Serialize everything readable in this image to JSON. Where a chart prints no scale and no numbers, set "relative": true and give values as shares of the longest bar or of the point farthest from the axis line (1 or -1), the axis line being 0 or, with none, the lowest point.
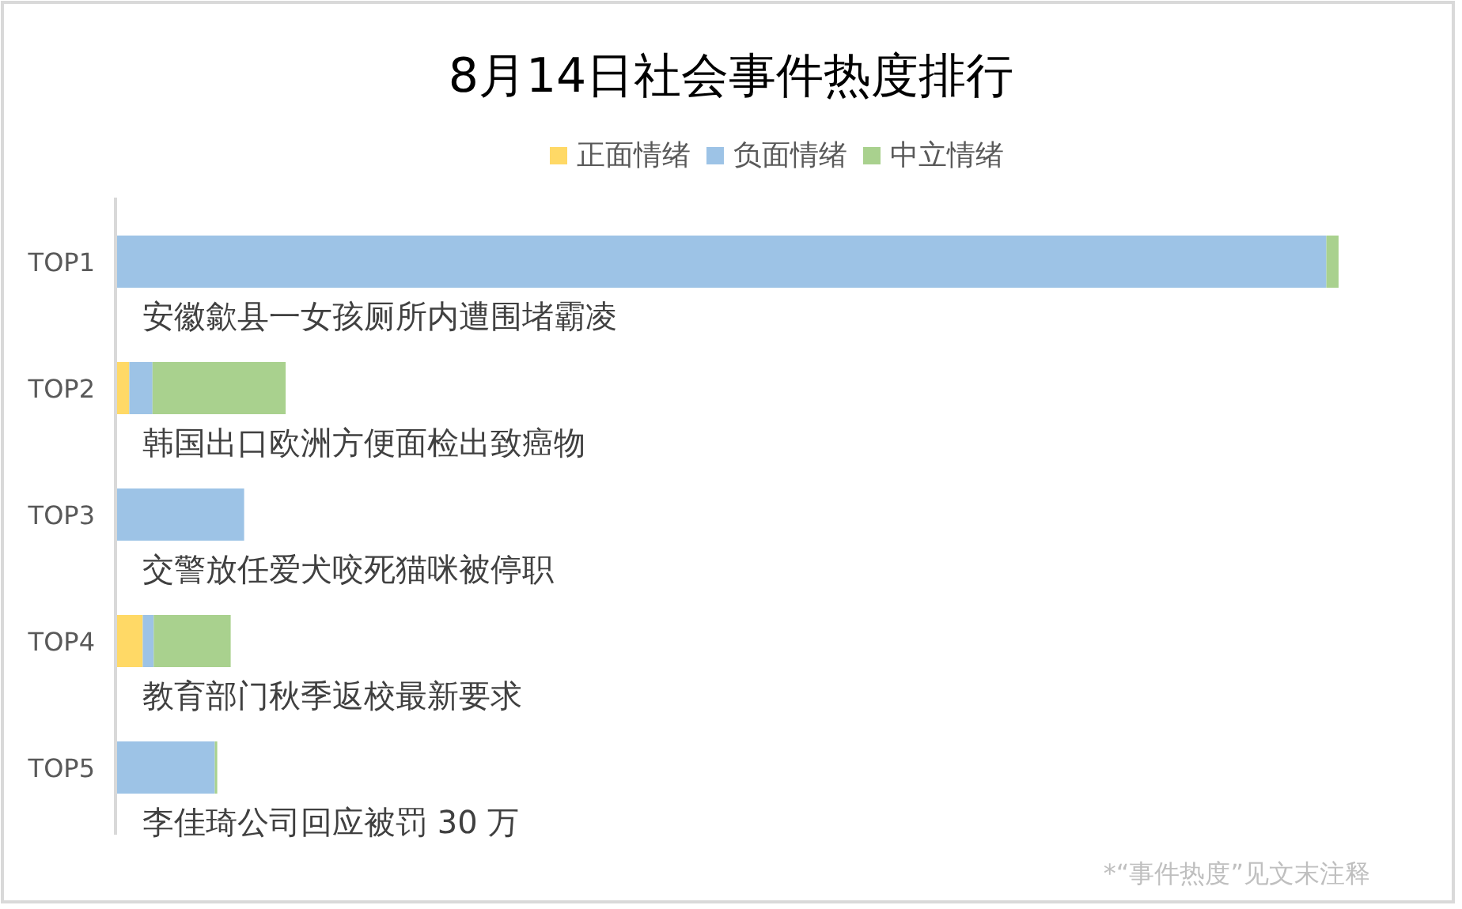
{
  "chart_data": {
    "type": "bar",
    "orientation": "horizontal",
    "stacked": true,
    "relative": true,
    "title": "8月14日社会事件热度排行",
    "legend": "top",
    "categories": [
      "TOP1",
      "TOP2",
      "TOP3",
      "TOP4",
      "TOP5"
    ],
    "series": [
      {
        "name": "正面情绪",
        "color": "#ffd966",
        "values": [
          0,
          0.01,
          0,
          0.021,
          0
        ]
      },
      {
        "name": "负面情绪",
        "color": "#9dc3e6",
        "values": [
          0.99,
          0.019,
          0.104,
          0.009,
          0.08
        ]
      },
      {
        "name": "中立情绪",
        "color": "#a9d18e",
        "values": [
          0.01,
          0.109,
          0,
          0.063,
          0.002
        ]
      }
    ],
    "annotations": [
      "安徽歙县一女孩厕所内遭围堵霸凌",
      "韩国出口欧洲方便面检出致癌物",
      "交警放任爱犬咬死猫咪被停职",
      "教育部门秋季返校最新要求",
      "李佳琦公司回应被罚 30 万",
      "*“事件热度”见文末注释"
    ]
  }
}
